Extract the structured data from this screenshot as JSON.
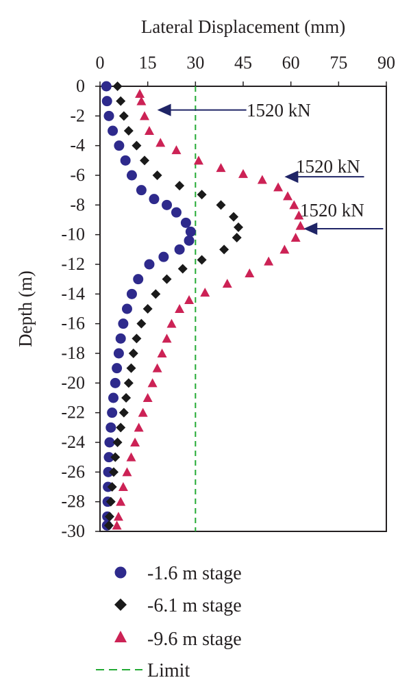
{
  "chart_data": {
    "type": "scatter",
    "title": "",
    "xlabel": "Lateral Displacement (mm)",
    "ylabel": "Depth (m)",
    "xlim": [
      0,
      90
    ],
    "ylim": [
      -30,
      0
    ],
    "x_ticks": [
      "0",
      "15",
      "30",
      "45",
      "60",
      "75",
      "90"
    ],
    "y_ticks": [
      "0",
      "-2",
      "-4",
      "-6",
      "-8",
      "-10",
      "-12",
      "-14",
      "-16",
      "-18",
      "-20",
      "-22",
      "-24",
      "-26",
      "-28",
      "-30"
    ],
    "x_axis_position": "top",
    "grid": false,
    "legend_position": "bottom",
    "colors": {
      "series1": "#2e2a8c",
      "series2": "#1a1a1a",
      "series3": "#cc2255",
      "limit": "#22aa33",
      "arrow": "#1f2466"
    },
    "series": [
      {
        "name": "-1.6 m stage",
        "marker": "circle",
        "points": [
          [
            2.0,
            0
          ],
          [
            2.2,
            -1
          ],
          [
            2.8,
            -2
          ],
          [
            4,
            -3
          ],
          [
            6,
            -4
          ],
          [
            8,
            -5
          ],
          [
            10,
            -6
          ],
          [
            13,
            -7
          ],
          [
            17,
            -7.6
          ],
          [
            21,
            -8
          ],
          [
            24,
            -8.5
          ],
          [
            27,
            -9.2
          ],
          [
            28.5,
            -9.8
          ],
          [
            28,
            -10.4
          ],
          [
            25,
            -11
          ],
          [
            20,
            -11.5
          ],
          [
            15.5,
            -12
          ],
          [
            12,
            -13
          ],
          [
            10,
            -14
          ],
          [
            8.5,
            -15
          ],
          [
            7.3,
            -16
          ],
          [
            6.5,
            -17
          ],
          [
            5.9,
            -18
          ],
          [
            5.3,
            -19
          ],
          [
            4.8,
            -20
          ],
          [
            4.2,
            -21
          ],
          [
            3.8,
            -22
          ],
          [
            3.4,
            -23
          ],
          [
            3.0,
            -24
          ],
          [
            2.8,
            -25
          ],
          [
            2.6,
            -26
          ],
          [
            2.5,
            -27
          ],
          [
            2.4,
            -28
          ],
          [
            2.3,
            -29
          ],
          [
            2.2,
            -29.6
          ]
        ]
      },
      {
        "name": "-6.1 m stage",
        "marker": "diamond",
        "points": [
          [
            5.5,
            0
          ],
          [
            6.5,
            -1
          ],
          [
            7.5,
            -2
          ],
          [
            9,
            -3
          ],
          [
            11.5,
            -4
          ],
          [
            14,
            -5
          ],
          [
            18,
            -6
          ],
          [
            25,
            -6.7
          ],
          [
            32,
            -7.3
          ],
          [
            38,
            -8
          ],
          [
            42,
            -8.8
          ],
          [
            43.5,
            -9.5
          ],
          [
            43,
            -10.2
          ],
          [
            39,
            -11
          ],
          [
            32,
            -11.7
          ],
          [
            26,
            -12.3
          ],
          [
            21,
            -13
          ],
          [
            17.5,
            -14
          ],
          [
            15,
            -15
          ],
          [
            13,
            -16
          ],
          [
            11.5,
            -17
          ],
          [
            10.5,
            -18
          ],
          [
            9.8,
            -19
          ],
          [
            9,
            -20
          ],
          [
            8.2,
            -21
          ],
          [
            7.5,
            -22
          ],
          [
            6.5,
            -23
          ],
          [
            5.5,
            -24
          ],
          [
            4.8,
            -25
          ],
          [
            4.3,
            -26
          ],
          [
            3.8,
            -27
          ],
          [
            3.4,
            -28
          ],
          [
            3.0,
            -29
          ],
          [
            2.8,
            -29.6
          ]
        ]
      },
      {
        "name": "-9.6 m stage",
        "marker": "triangle",
        "points": [
          [
            12.5,
            -0.5
          ],
          [
            13,
            -1
          ],
          [
            14,
            -2
          ],
          [
            15.5,
            -3
          ],
          [
            19,
            -3.8
          ],
          [
            24,
            -4.3
          ],
          [
            31,
            -5
          ],
          [
            38,
            -5.5
          ],
          [
            45,
            -5.9
          ],
          [
            51,
            -6.3
          ],
          [
            56,
            -6.8
          ],
          [
            59,
            -7.4
          ],
          [
            61,
            -8
          ],
          [
            62.5,
            -8.7
          ],
          [
            63,
            -9.4
          ],
          [
            61.5,
            -10.2
          ],
          [
            58,
            -11
          ],
          [
            53,
            -11.8
          ],
          [
            47,
            -12.6
          ],
          [
            40,
            -13.3
          ],
          [
            33,
            -13.9
          ],
          [
            28,
            -14.4
          ],
          [
            25,
            -15
          ],
          [
            22.5,
            -16
          ],
          [
            21,
            -17
          ],
          [
            19.5,
            -18
          ],
          [
            18,
            -19
          ],
          [
            16.5,
            -20
          ],
          [
            15,
            -21
          ],
          [
            13.5,
            -22
          ],
          [
            12.2,
            -23
          ],
          [
            11,
            -24
          ],
          [
            9.8,
            -25
          ],
          [
            8.5,
            -26
          ],
          [
            7.3,
            -27
          ],
          [
            6.5,
            -28
          ],
          [
            5.8,
            -29
          ],
          [
            5.3,
            -29.6
          ]
        ]
      }
    ],
    "limit": {
      "name": "Limit",
      "x": 30
    },
    "annotations": [
      {
        "text": "1520 kN",
        "y_depth": -1.6,
        "arrow_from_x": 46,
        "arrow_to_x": 18
      },
      {
        "text": "1520 kN",
        "y_depth": -6.1,
        "arrow_from_x": 83,
        "arrow_to_x": 58
      },
      {
        "text": "1520 kN",
        "y_depth": -9.6,
        "arrow_from_x": 89,
        "arrow_to_x": 64
      }
    ]
  }
}
